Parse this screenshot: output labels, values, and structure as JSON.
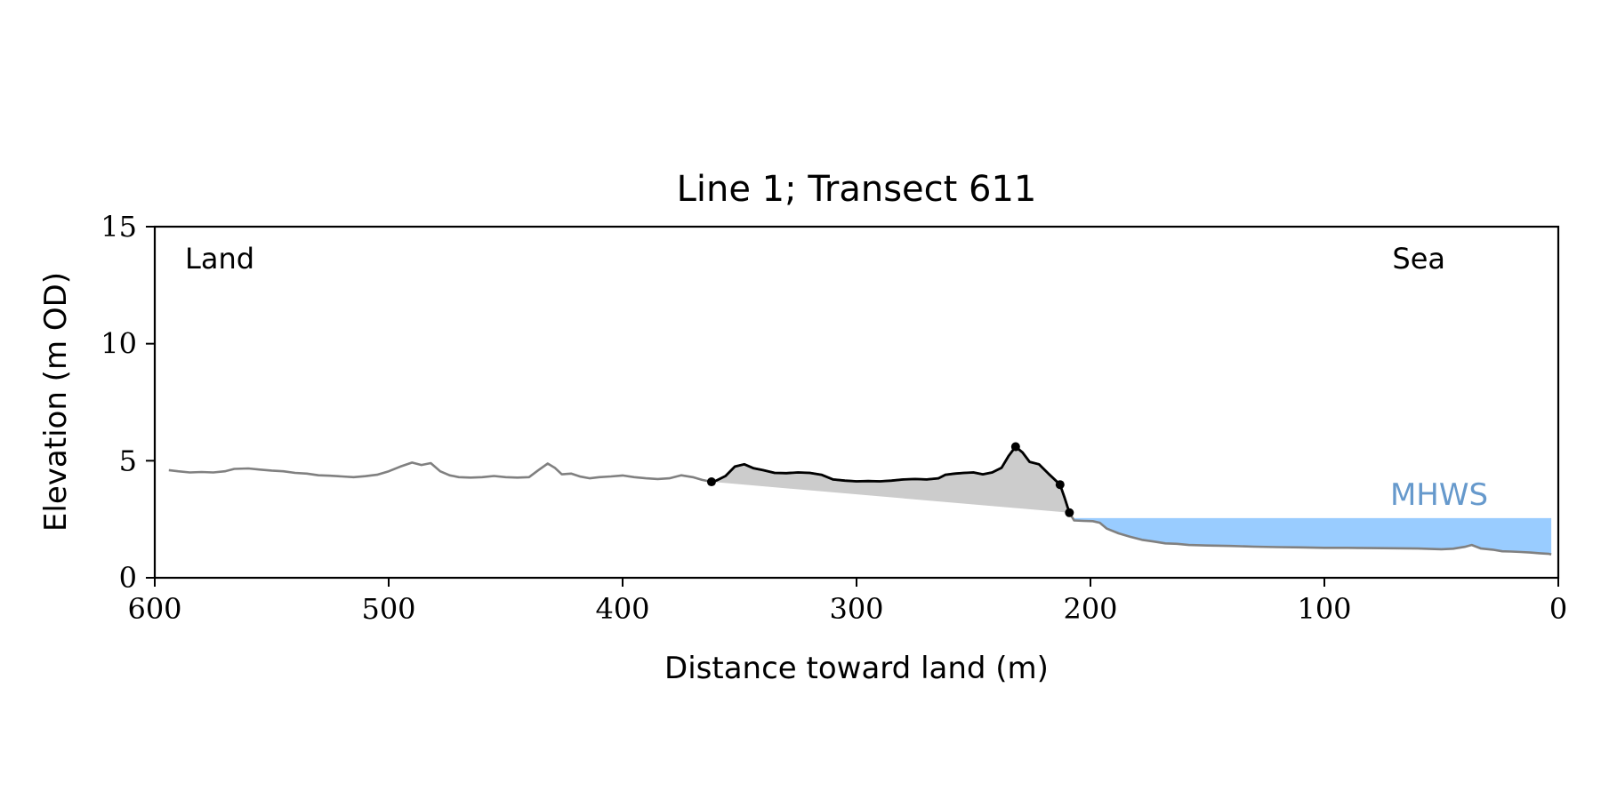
{
  "chart_data": {
    "type": "line",
    "title": "Line 1; Transect 611",
    "xlabel": "Distance toward land (m)",
    "ylabel": "Elevation (m OD)",
    "xlim": [
      600,
      0
    ],
    "ylim": [
      0,
      15
    ],
    "x_ticks": [
      600,
      500,
      400,
      300,
      200,
      100,
      0
    ],
    "y_ticks": [
      0,
      5,
      10,
      15
    ],
    "grid": false,
    "annotations": {
      "left_label": "Land",
      "right_label": "Sea",
      "mhws_label": "MHWS"
    },
    "mhws_level": 2.55,
    "colors": {
      "profile": "#808080",
      "dune": "#000000",
      "dune_fill": "#cccccc",
      "water_fill": "#99ccff",
      "mhws_text": "#6699cc"
    },
    "series": [
      {
        "role": "profile",
        "points": [
          [
            594,
            4.6
          ],
          [
            590,
            4.55
          ],
          [
            585,
            4.5
          ],
          [
            580,
            4.52
          ],
          [
            575,
            4.5
          ],
          [
            570,
            4.55
          ],
          [
            566,
            4.65
          ],
          [
            560,
            4.67
          ],
          [
            555,
            4.62
          ],
          [
            550,
            4.58
          ],
          [
            545,
            4.55
          ],
          [
            540,
            4.48
          ],
          [
            535,
            4.45
          ],
          [
            530,
            4.38
          ],
          [
            525,
            4.36
          ],
          [
            520,
            4.33
          ],
          [
            515,
            4.3
          ],
          [
            510,
            4.34
          ],
          [
            505,
            4.4
          ],
          [
            500,
            4.55
          ],
          [
            495,
            4.75
          ],
          [
            490,
            4.92
          ],
          [
            486,
            4.82
          ],
          [
            482,
            4.9
          ],
          [
            478,
            4.55
          ],
          [
            474,
            4.38
          ],
          [
            470,
            4.3
          ],
          [
            465,
            4.28
          ],
          [
            460,
            4.3
          ],
          [
            455,
            4.35
          ],
          [
            450,
            4.3
          ],
          [
            445,
            4.28
          ],
          [
            440,
            4.3
          ],
          [
            436,
            4.6
          ],
          [
            432,
            4.88
          ],
          [
            429,
            4.7
          ],
          [
            426,
            4.42
          ],
          [
            422,
            4.45
          ],
          [
            418,
            4.32
          ],
          [
            414,
            4.25
          ],
          [
            410,
            4.3
          ],
          [
            405,
            4.33
          ],
          [
            400,
            4.37
          ],
          [
            395,
            4.3
          ],
          [
            390,
            4.25
          ],
          [
            385,
            4.22
          ],
          [
            380,
            4.25
          ],
          [
            375,
            4.38
          ],
          [
            370,
            4.3
          ],
          [
            366,
            4.18
          ],
          [
            362,
            4.1
          ],
          [
            360,
            4.15
          ],
          [
            356,
            4.35
          ],
          [
            352,
            4.75
          ],
          [
            348,
            4.85
          ],
          [
            344,
            4.68
          ],
          [
            340,
            4.6
          ],
          [
            335,
            4.48
          ],
          [
            330,
            4.47
          ],
          [
            325,
            4.5
          ],
          [
            320,
            4.48
          ],
          [
            315,
            4.4
          ],
          [
            310,
            4.2
          ],
          [
            305,
            4.15
          ],
          [
            300,
            4.12
          ],
          [
            295,
            4.13
          ],
          [
            290,
            4.12
          ],
          [
            285,
            4.15
          ],
          [
            280,
            4.2
          ],
          [
            275,
            4.22
          ],
          [
            270,
            4.2
          ],
          [
            265,
            4.25
          ],
          [
            262,
            4.4
          ],
          [
            258,
            4.45
          ],
          [
            254,
            4.48
          ],
          [
            250,
            4.5
          ],
          [
            246,
            4.42
          ],
          [
            242,
            4.5
          ],
          [
            238,
            4.7
          ],
          [
            235,
            5.2
          ],
          [
            232,
            5.6
          ],
          [
            229,
            5.35
          ],
          [
            226,
            4.95
          ],
          [
            222,
            4.85
          ],
          [
            218,
            4.45
          ],
          [
            213,
            3.98
          ],
          [
            211,
            3.4
          ],
          [
            209,
            2.78
          ],
          [
            207,
            2.45
          ],
          [
            203,
            2.43
          ],
          [
            199,
            2.42
          ],
          [
            196,
            2.35
          ],
          [
            193,
            2.1
          ],
          [
            188,
            1.9
          ],
          [
            183,
            1.75
          ],
          [
            178,
            1.62
          ],
          [
            173,
            1.55
          ],
          [
            168,
            1.47
          ],
          [
            163,
            1.45
          ],
          [
            158,
            1.4
          ],
          [
            150,
            1.38
          ],
          [
            140,
            1.36
          ],
          [
            130,
            1.33
          ],
          [
            120,
            1.31
          ],
          [
            110,
            1.3
          ],
          [
            100,
            1.28
          ],
          [
            90,
            1.28
          ],
          [
            80,
            1.27
          ],
          [
            70,
            1.26
          ],
          [
            60,
            1.25
          ],
          [
            50,
            1.22
          ],
          [
            45,
            1.24
          ],
          [
            40,
            1.32
          ],
          [
            37,
            1.4
          ],
          [
            33,
            1.25
          ],
          [
            28,
            1.2
          ],
          [
            24,
            1.13
          ],
          [
            20,
            1.12
          ],
          [
            16,
            1.1
          ],
          [
            12,
            1.08
          ],
          [
            8,
            1.05
          ],
          [
            4,
            1.02
          ],
          [
            3,
            1.0
          ]
        ]
      }
    ],
    "dune": {
      "x_start": 362,
      "x_end": 209,
      "markers": [
        [
          362,
          4.1
        ],
        [
          232,
          5.6
        ],
        [
          213,
          3.98
        ],
        [
          209,
          2.78
        ]
      ]
    }
  }
}
